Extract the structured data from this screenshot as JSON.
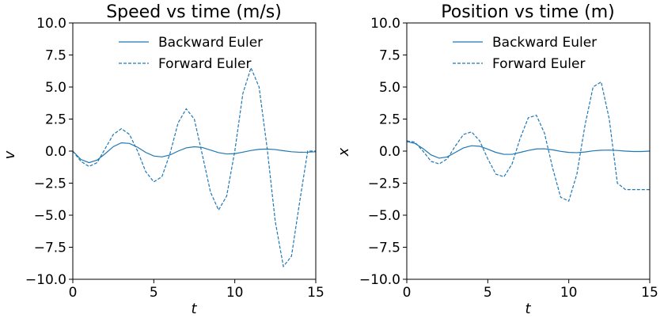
{
  "chart_data": [
    {
      "type": "line",
      "title": "Speed vs time (m/s)",
      "xlabel": "t",
      "ylabel": "v",
      "xlim": [
        0,
        15
      ],
      "ylim": [
        -10,
        10
      ],
      "xticks": [
        0,
        5,
        10,
        15
      ],
      "yticks": [
        10.0,
        7.5,
        5.0,
        2.5,
        0.0,
        -2.5,
        -5.0,
        -7.5,
        -10.0
      ],
      "xtick_labels": [
        "0",
        "5",
        "10",
        "15"
      ],
      "ytick_labels": [
        "10.0",
        "7.5",
        "5.0",
        "2.5",
        "0.0",
        "−2.5",
        "−5.0",
        "−7.5",
        "−10.0"
      ],
      "grid": false,
      "legend_position": "top-center",
      "series": [
        {
          "name": "Backward Euler",
          "style": "solid",
          "color": "#1f77b4",
          "x": [
            0,
            0.5,
            1.0,
            1.5,
            2.0,
            2.5,
            3.0,
            3.5,
            4.0,
            4.5,
            5.0,
            5.5,
            6.0,
            6.5,
            7.0,
            7.5,
            8.0,
            8.5,
            9.0,
            9.5,
            10.0,
            10.5,
            11.0,
            11.5,
            12.0,
            12.5,
            13.0,
            13.5,
            14.0,
            14.5,
            15.0
          ],
          "y": [
            0.0,
            -0.65,
            -0.9,
            -0.7,
            -0.2,
            0.35,
            0.65,
            0.6,
            0.3,
            -0.1,
            -0.38,
            -0.45,
            -0.3,
            0.0,
            0.25,
            0.34,
            0.28,
            0.08,
            -0.12,
            -0.22,
            -0.2,
            -0.08,
            0.05,
            0.14,
            0.16,
            0.12,
            0.03,
            -0.05,
            -0.09,
            -0.08,
            -0.05
          ]
        },
        {
          "name": "Forward Euler",
          "style": "dashed",
          "color": "#1f77b4",
          "x": [
            0,
            0.5,
            1.0,
            1.5,
            2.0,
            2.5,
            3.0,
            3.5,
            4.0,
            4.5,
            5.0,
            5.5,
            6.0,
            6.5,
            7.0,
            7.5,
            8.0,
            8.5,
            9.0,
            9.5,
            10.0,
            10.5,
            11.0,
            11.5,
            12.0,
            12.5,
            13.0,
            13.5,
            14.0,
            14.5,
            15.0
          ],
          "y": [
            0.0,
            -0.8,
            -1.2,
            -0.9,
            0.2,
            1.3,
            1.75,
            1.3,
            0.0,
            -1.6,
            -2.4,
            -2.0,
            -0.2,
            2.2,
            3.3,
            2.5,
            -0.3,
            -3.2,
            -4.6,
            -3.5,
            0.0,
            4.5,
            6.5,
            5.0,
            0.2,
            -5.5,
            -9.0,
            -8.2,
            -4.0,
            0.0,
            0.0
          ]
        }
      ]
    },
    {
      "type": "line",
      "title": "Position vs time (m)",
      "xlabel": "t",
      "ylabel": "x",
      "xlim": [
        0,
        15
      ],
      "ylim": [
        -10,
        10
      ],
      "xticks": [
        0,
        5,
        10,
        15
      ],
      "yticks": [
        10.0,
        7.5,
        5.0,
        2.5,
        0.0,
        -2.5,
        -5.0,
        -7.5,
        -10.0
      ],
      "xtick_labels": [
        "0",
        "5",
        "10",
        "15"
      ],
      "ytick_labels": [
        "10.0",
        "7.5",
        "5.0",
        "2.5",
        "0.0",
        "−2.5",
        "−5.0",
        "−7.5",
        "−10.0"
      ],
      "grid": false,
      "legend_position": "top-center",
      "series": [
        {
          "name": "Backward Euler",
          "style": "solid",
          "color": "#1f77b4",
          "x": [
            0,
            0.5,
            1.0,
            1.5,
            2.0,
            2.5,
            3.0,
            3.5,
            4.0,
            4.5,
            5.0,
            5.5,
            6.0,
            6.5,
            7.0,
            7.5,
            8.0,
            8.5,
            9.0,
            9.5,
            10.0,
            10.5,
            11.0,
            11.5,
            12.0,
            12.5,
            13.0,
            13.5,
            14.0,
            14.5,
            15.0
          ],
          "y": [
            0.75,
            0.6,
            0.2,
            -0.3,
            -0.55,
            -0.45,
            -0.1,
            0.25,
            0.42,
            0.38,
            0.15,
            -0.1,
            -0.25,
            -0.25,
            -0.1,
            0.05,
            0.17,
            0.18,
            0.1,
            -0.02,
            -0.1,
            -0.12,
            -0.07,
            0.02,
            0.07,
            0.08,
            0.05,
            0.0,
            -0.03,
            -0.03,
            0.0
          ]
        },
        {
          "name": "Forward Euler",
          "style": "dashed",
          "color": "#1f77b4",
          "x": [
            0,
            0.5,
            1.0,
            1.5,
            2.0,
            2.5,
            3.0,
            3.5,
            4.0,
            4.5,
            5.0,
            5.5,
            6.0,
            6.5,
            7.0,
            7.5,
            8.0,
            8.5,
            9.0,
            9.5,
            10.0,
            10.5,
            11.0,
            11.5,
            12.0,
            12.5,
            13.0,
            13.5,
            14.0,
            14.5,
            15.0
          ],
          "y": [
            0.8,
            0.7,
            0.0,
            -0.8,
            -1.0,
            -0.6,
            0.4,
            1.3,
            1.5,
            0.8,
            -0.6,
            -1.8,
            -2.0,
            -1.0,
            1.0,
            2.6,
            2.8,
            1.4,
            -1.3,
            -3.6,
            -3.9,
            -1.8,
            2.0,
            5.0,
            5.4,
            2.5,
            -2.5,
            -3.0,
            -3.0,
            -3.0,
            -3.0
          ]
        }
      ]
    }
  ]
}
